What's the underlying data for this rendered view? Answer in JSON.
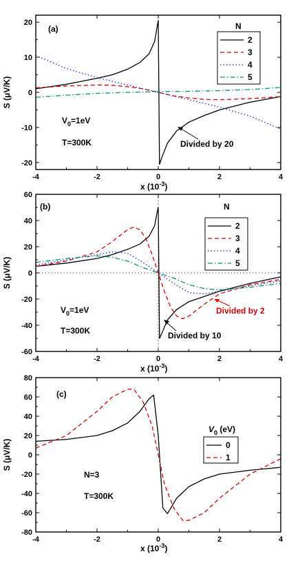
{
  "chart_data": [
    {
      "type": "line",
      "panel_label": "(a)",
      "xlabel": "x (10",
      "xlabel_exp": "-3",
      "xlabel_tail": ")",
      "ylabel": "S (μV/K)",
      "xlim": [
        -4,
        4
      ],
      "ylim": [
        -22,
        22
      ],
      "xticks": [
        -4,
        -2,
        0,
        2,
        4
      ],
      "yticks": [
        -20,
        -10,
        0,
        10,
        20
      ],
      "xtick_labels": [
        "-4",
        "-2",
        "0",
        "2",
        "4"
      ],
      "ytick_labels": [
        "-20",
        "-10",
        "0",
        "10",
        "20"
      ],
      "legend_title": "N",
      "legend_position": "top-right",
      "annotations": {
        "v0_main": "V",
        "v0_sub": "0",
        "v0_val": "=1eV",
        "temp": "T=300K",
        "divided": "Divided by 20"
      },
      "series": [
        {
          "name": "2",
          "color": "#000000",
          "dash": "solid",
          "x": [
            -4,
            -3,
            -2,
            -1.5,
            -1,
            -0.6,
            -0.3,
            -0.12,
            -0.04,
            0,
            0.04,
            0.12,
            0.3,
            0.6,
            1,
            1.5,
            2,
            3,
            4
          ],
          "y": [
            1.0,
            2.3,
            4.0,
            5.0,
            6.6,
            8.5,
            11.0,
            14.5,
            18.5,
            20.5,
            -20.5,
            -18.5,
            -14.5,
            -11.0,
            -8.5,
            -6.6,
            -5.0,
            -2.8,
            -1.2
          ]
        },
        {
          "name": "3",
          "color": "#dd0000",
          "dash": "dashed",
          "x": [
            -4,
            -3,
            -2,
            -1.5,
            -1,
            -0.5,
            0,
            0.5,
            1,
            1.5,
            2,
            3,
            4
          ],
          "y": [
            1.3,
            1.8,
            2.1,
            2.0,
            1.6,
            1.0,
            0.0,
            -1.0,
            -1.6,
            -2.0,
            -2.1,
            -1.8,
            -1.2
          ]
        },
        {
          "name": "4",
          "color": "#2222cc",
          "dash": "dotted",
          "x": [
            -4,
            -3,
            -2,
            -1,
            0,
            1,
            2,
            3,
            4
          ],
          "y": [
            10.5,
            6.8,
            4.2,
            2.1,
            0.0,
            -2.1,
            -4.2,
            -6.8,
            -10.5
          ]
        },
        {
          "name": "5",
          "color": "#009966",
          "dash": "dashdot",
          "x": [
            -4,
            -3,
            -2,
            -1,
            0,
            1,
            2,
            3,
            4
          ],
          "y": [
            -1.4,
            -0.8,
            -0.3,
            0.0,
            0.2,
            0.3,
            0.5,
            0.8,
            1.4
          ]
        }
      ]
    },
    {
      "type": "line",
      "panel_label": "(b)",
      "xlabel": "x (10",
      "xlabel_exp": "-3",
      "xlabel_tail": ")",
      "ylabel": "S (μV/K)",
      "xlim": [
        -4,
        4
      ],
      "ylim": [
        -60,
        60
      ],
      "xticks": [
        -4,
        -2,
        0,
        2,
        4
      ],
      "yticks": [
        -60,
        -40,
        -20,
        0,
        20,
        40,
        60
      ],
      "xtick_labels": [
        "-4",
        "-2",
        "0",
        "2",
        "4"
      ],
      "ytick_labels": [
        "-60",
        "-40",
        "-20",
        "0",
        "20",
        "40",
        "60"
      ],
      "legend_title": "N",
      "legend_position": "top-right",
      "annotations": {
        "v0_main": "V",
        "v0_sub": "0",
        "v0_val": "=1eV",
        "temp": "T=300K",
        "divided10": "Divided by 10",
        "divided2": "Divided by 2",
        "divided2_color": "#dd0000"
      },
      "series": [
        {
          "name": "2",
          "color": "#000000",
          "dash": "solid",
          "x": [
            -4,
            -3,
            -2,
            -1.5,
            -1,
            -0.6,
            -0.3,
            -0.12,
            -0.04,
            0,
            0.04,
            0.12,
            0.3,
            0.6,
            1,
            1.5,
            2,
            3,
            4
          ],
          "y": [
            5,
            7.5,
            11,
            14,
            18,
            22,
            28,
            36,
            46,
            50,
            -50,
            -46,
            -36,
            -28,
            -22,
            -18,
            -14,
            -8,
            -3
          ]
        },
        {
          "name": "3",
          "color": "#dd0000",
          "dash": "dashed",
          "x": [
            -4,
            -3,
            -2,
            -1.5,
            -1,
            -0.8,
            -0.6,
            -0.4,
            -0.2,
            0,
            0.2,
            0.4,
            0.6,
            0.8,
            1,
            1.5,
            2,
            3,
            4
          ],
          "y": [
            5,
            9,
            16,
            24,
            33,
            35,
            33,
            26,
            14,
            0,
            -14,
            -26,
            -33,
            -35,
            -33,
            -24,
            -16,
            -9,
            -5
          ]
        },
        {
          "name": "4",
          "color": "#2222cc",
          "dash": "dotted",
          "x": [
            -4,
            -3,
            -2,
            -1.5,
            -1,
            -0.5,
            0,
            0.5,
            1,
            1.5,
            2,
            3,
            4
          ],
          "y": [
            6,
            10,
            14,
            16,
            15,
            8,
            0,
            -8,
            -15,
            -16,
            -14,
            -10,
            -6
          ]
        },
        {
          "name": "5",
          "color": "#009966",
          "dash": "dashdot",
          "x": [
            -4,
            -3,
            -2,
            -1.5,
            -1,
            -0.5,
            0,
            0.5,
            1,
            1.5,
            2,
            3,
            4
          ],
          "y": [
            8,
            11,
            13,
            12,
            9,
            4,
            0,
            -4,
            -9,
            -12,
            -13,
            -11,
            -8
          ]
        }
      ]
    },
    {
      "type": "line",
      "panel_label": "(c)",
      "xlabel": "x (10",
      "xlabel_exp": "-3",
      "xlabel_tail": ")",
      "ylabel": "S (μV/K)",
      "xlim": [
        -4,
        4
      ],
      "ylim": [
        -80,
        80
      ],
      "xticks": [
        -4,
        -2,
        0,
        2,
        4
      ],
      "yticks": [
        -80,
        -60,
        -40,
        -20,
        0,
        20,
        40,
        60,
        80
      ],
      "xtick_labels": [
        "-4",
        "-2",
        "0",
        "2",
        "4"
      ],
      "ytick_labels": [
        "-80",
        "-60",
        "-40",
        "-20",
        "0",
        "20",
        "40",
        "60",
        "80"
      ],
      "legend_title_main": "V",
      "legend_title_sub": "0",
      "legend_title_tail": " (eV)",
      "legend_position": "right",
      "annotations": {
        "n_label": "N=3",
        "temp": "T=300K"
      },
      "series": [
        {
          "name": "0",
          "color": "#000000",
          "dash": "solid",
          "x": [
            -4,
            -3,
            -2,
            -1.5,
            -1,
            -0.6,
            -0.3,
            -0.15,
            0,
            0.15,
            0.3,
            0.6,
            1,
            1.5,
            2,
            3,
            4
          ],
          "y": [
            14,
            16,
            20,
            25,
            33,
            45,
            58,
            62,
            20,
            -55,
            -61,
            -45,
            -33,
            -25,
            -20,
            -16,
            -13
          ]
        },
        {
          "name": "1",
          "color": "#dd0000",
          "dash": "dashed",
          "x": [
            -4,
            -3,
            -2,
            -1.5,
            -1,
            -0.8,
            -0.5,
            -0.2,
            0,
            0.2,
            0.5,
            0.8,
            1,
            1.5,
            2,
            3,
            4
          ],
          "y": [
            7,
            20,
            45,
            60,
            68,
            68,
            55,
            30,
            0,
            -30,
            -55,
            -68,
            -68,
            -60,
            -45,
            -20,
            -4
          ]
        }
      ]
    }
  ]
}
